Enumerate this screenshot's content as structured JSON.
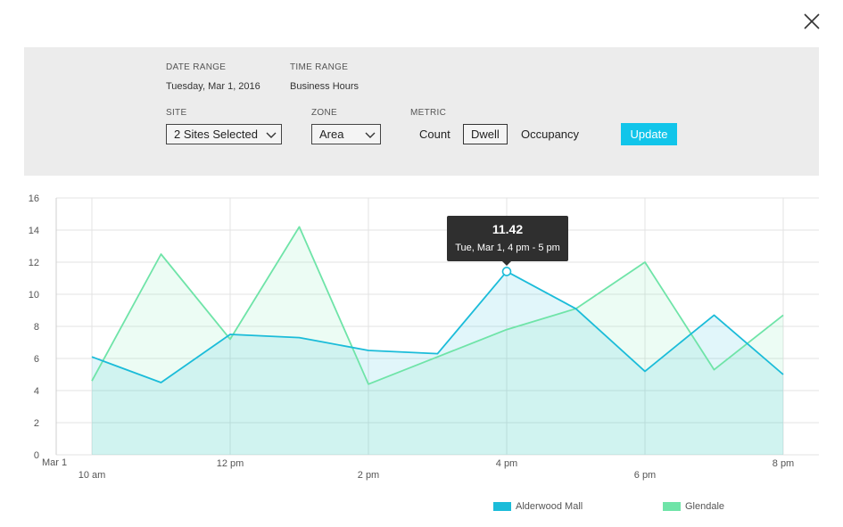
{
  "filters": {
    "date_range": {
      "label": "DATE RANGE",
      "value": "Tuesday, Mar 1, 2016"
    },
    "time_range": {
      "label": "TIME RANGE",
      "value": "Business Hours"
    },
    "site": {
      "label": "SITE",
      "value": "2 Sites Selected"
    },
    "zone": {
      "label": "ZONE",
      "value": "Area"
    },
    "metric": {
      "label": "METRIC",
      "options": [
        "Count",
        "Dwell",
        "Occupancy"
      ],
      "selected": "Dwell"
    },
    "update_label": "Update"
  },
  "icons": {
    "close": "close-icon",
    "chevron": "chevron-down-icon"
  },
  "colors": {
    "accent": "#11c5ea",
    "alderwood": "#1bbcd9",
    "glendale": "#6fe4a8"
  },
  "tooltip": {
    "value": "11.42",
    "label": "Tue, Mar 1, 4 pm - 5 pm"
  },
  "chart_data": {
    "type": "area",
    "x": [
      "10 am",
      "11 am",
      "12 pm",
      "1 pm",
      "2 pm",
      "3 pm",
      "4 pm",
      "5 pm",
      "6 pm",
      "7 pm",
      "8 pm"
    ],
    "x_tick_labels": [
      "10 am",
      "12 pm",
      "2 pm",
      "4 pm",
      "6 pm",
      "8 pm"
    ],
    "x_date_label": "Mar 1",
    "y_ticks": [
      0,
      2,
      4,
      6,
      8,
      10,
      12,
      14,
      16
    ],
    "ylim": [
      0,
      16
    ],
    "grid": true,
    "legend_position": "bottom-right",
    "series": [
      {
        "name": "Alderwood Mall",
        "color": "#1bbcd9",
        "values": [
          6.1,
          4.5,
          7.5,
          7.3,
          6.5,
          6.3,
          11.42,
          9.1,
          5.2,
          8.7,
          5.0
        ]
      },
      {
        "name": "Glendale",
        "color": "#6fe4a8",
        "values": [
          4.6,
          12.5,
          7.2,
          14.2,
          4.4,
          6.1,
          7.8,
          9.1,
          12.0,
          5.3,
          8.7
        ]
      }
    ],
    "highlight": {
      "series": "Alderwood Mall",
      "x": "4 pm",
      "value": 11.42
    }
  }
}
